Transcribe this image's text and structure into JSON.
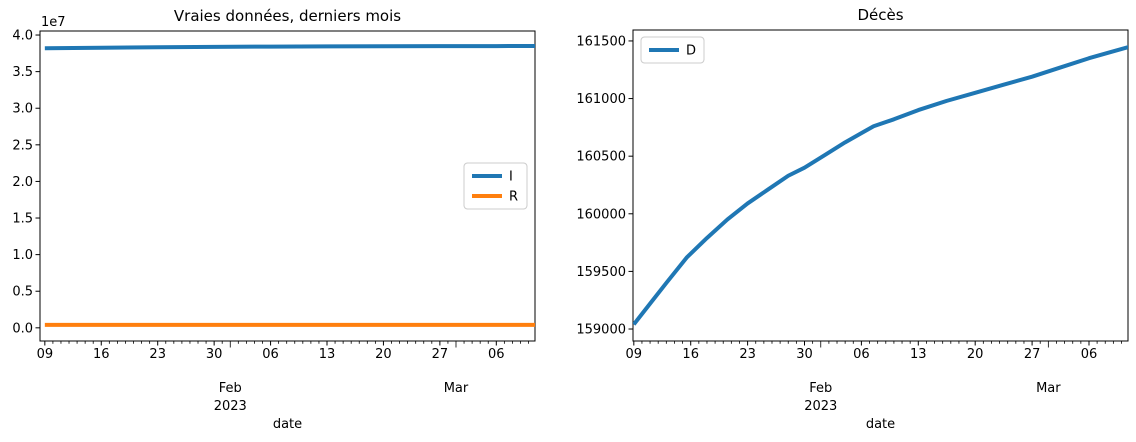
{
  "figure_type": "matplotlib-two-panel-line-figure",
  "colors": {
    "line_blue": "#1f77b4",
    "line_orange": "#ff7f0e",
    "axis": "#000000",
    "text": "#000000",
    "legend_border": "#cccccc",
    "legend_fill": "#ffffff"
  },
  "chart_data": [
    {
      "type": "line",
      "title": "Vraies données, derniers mois",
      "xlabel": "date",
      "ylabel": "",
      "y_offset_label": "1e7",
      "x_unit": "days since 2023-01-09",
      "xlim_days": [
        -0.6,
        60.8
      ],
      "ylim": [
        -1800000,
        40550000
      ],
      "grid": false,
      "x_tick_days": [
        0,
        7,
        14,
        21,
        28,
        35,
        42,
        49,
        56
      ],
      "x_tick_labels": [
        "09",
        "16",
        "23",
        "30",
        "06",
        "13",
        "20",
        "27",
        "06"
      ],
      "x_minor_step_days": 1,
      "x_month_labels": [
        {
          "day": 23,
          "line1": "Feb",
          "line2": "2023"
        },
        {
          "day": 51,
          "line1": "Mar",
          "line2": ""
        }
      ],
      "y_ticks": {
        "values": [
          0,
          5000000,
          10000000,
          15000000,
          20000000,
          25000000,
          30000000,
          35000000,
          40000000
        ],
        "labels": [
          "0.0",
          "0.5",
          "1.0",
          "1.5",
          "2.0",
          "2.5",
          "3.0",
          "3.5",
          "4.0"
        ]
      },
      "legend": {
        "location": "center-right",
        "entries": [
          "I",
          "R"
        ]
      },
      "series": [
        {
          "name": "I",
          "color": "#1f77b4",
          "x_days": [
            0,
            7,
            14,
            21,
            28,
            35,
            42,
            49,
            56,
            61
          ],
          "values": [
            38200000,
            38270000,
            38330000,
            38380000,
            38420000,
            38450000,
            38470000,
            38480000,
            38490000,
            38500000
          ]
        },
        {
          "name": "R",
          "color": "#ff7f0e",
          "x_days": [
            0,
            7,
            14,
            21,
            28,
            35,
            42,
            49,
            56,
            61
          ],
          "values": [
            400000,
            400000,
            400000,
            400000,
            400000,
            400000,
            400000,
            400000,
            400000,
            400000
          ]
        }
      ]
    },
    {
      "type": "line",
      "title": "Décès",
      "xlabel": "date",
      "ylabel": "",
      "y_offset_label": "",
      "x_unit": "days since 2023-01-09",
      "xlim_days": [
        -0.1,
        60.8
      ],
      "ylim": [
        158896,
        161595
      ],
      "grid": false,
      "x_tick_days": [
        0,
        7,
        14,
        21,
        28,
        35,
        42,
        49,
        56
      ],
      "x_tick_labels": [
        "09",
        "16",
        "23",
        "30",
        "06",
        "13",
        "20",
        "27",
        "06"
      ],
      "x_minor_step_days": 1,
      "x_month_labels": [
        {
          "day": 23,
          "line1": "Feb",
          "line2": "2023"
        },
        {
          "day": 51,
          "line1": "Mar",
          "line2": ""
        }
      ],
      "y_ticks": {
        "values": [
          159000,
          159500,
          160000,
          160500,
          161000,
          161500
        ],
        "labels": [
          "159000",
          "159500",
          "160000",
          "160500",
          "161000",
          "161500"
        ]
      },
      "legend": {
        "location": "upper-left",
        "entries": [
          "D"
        ]
      },
      "series": [
        {
          "name": "D",
          "color": "#1f77b4",
          "x_days": [
            0,
            2,
            4,
            6.5,
            9,
            11.5,
            14,
            16.5,
            19,
            21,
            23.5,
            26,
            28,
            29.5,
            32,
            35,
            38.5,
            42,
            45.5,
            49,
            52.5,
            56,
            58.5,
            61
          ],
          "values": [
            159040,
            159220,
            159400,
            159620,
            159790,
            159950,
            160090,
            160210,
            160330,
            160400,
            160510,
            160620,
            160700,
            160760,
            160820,
            160900,
            160980,
            161050,
            161120,
            161190,
            161270,
            161350,
            161400,
            161450
          ]
        }
      ]
    }
  ]
}
